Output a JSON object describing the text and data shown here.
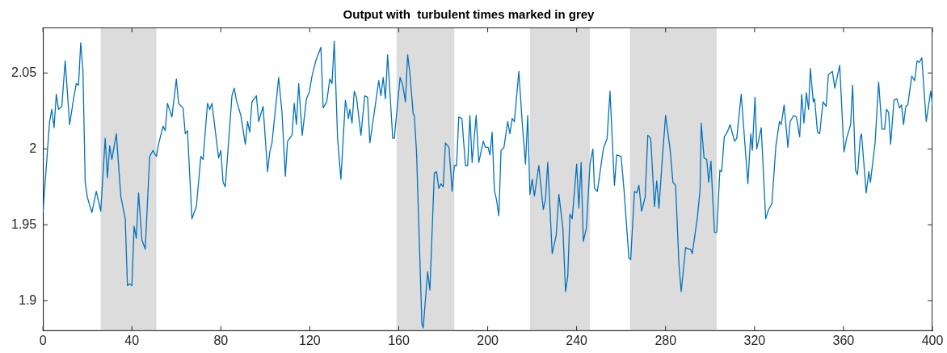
{
  "chart_data": {
    "type": "line",
    "title": "Output with  turbulent times marked in grey",
    "x": [
      0,
      3,
      4,
      5,
      6,
      7,
      8.5,
      10,
      12,
      14,
      15,
      16,
      17,
      18,
      19,
      20,
      22,
      24,
      26,
      28,
      29,
      30,
      31,
      33,
      35,
      37,
      38,
      39,
      40,
      41,
      42,
      43,
      44.5,
      46,
      48,
      49.5,
      51,
      52,
      54,
      55,
      56,
      58,
      60,
      61,
      63,
      64,
      65,
      67,
      69,
      71,
      72,
      74,
      75,
      76,
      79,
      80,
      81,
      82,
      85,
      86,
      87,
      89,
      91,
      92,
      93,
      94,
      96,
      97,
      99,
      101,
      102,
      103,
      106,
      107.5,
      109,
      110,
      112,
      113,
      114,
      115,
      116.6,
      118.5,
      119.7,
      121,
      122.7,
      125,
      126,
      127.6,
      129,
      130,
      131,
      132.5,
      134,
      136,
      137.4,
      138,
      139,
      140,
      141,
      143,
      144.7,
      146,
      147,
      149,
      151,
      152,
      153,
      154,
      155,
      157.3,
      158,
      160.6,
      161.8,
      163,
      164,
      165,
      166.5,
      167,
      168,
      170.4,
      171,
      173,
      174,
      176,
      177,
      178,
      179,
      180,
      181,
      182.6,
      184,
      185,
      186,
      187,
      188.4,
      190,
      191,
      192,
      193,
      194.8,
      196,
      198,
      199,
      200.2,
      201,
      202,
      203,
      204,
      205,
      206,
      207.3,
      209,
      210,
      211,
      212,
      214,
      215.5,
      217,
      218,
      219,
      220,
      221,
      223,
      225,
      226,
      227,
      229,
      230.8,
      232,
      233.8,
      235,
      236,
      237,
      238,
      240,
      241,
      242,
      243,
      244.4,
      246,
      247.3,
      248,
      249.3,
      252,
      253.7,
      255,
      257,
      258,
      260,
      261.3,
      263.5,
      264.3,
      266,
      267,
      268,
      269.2,
      270.8,
      272,
      273.3,
      275,
      276,
      277,
      278.7,
      280,
      282,
      283.3,
      284.5,
      286,
      287,
      289,
      290.3,
      291.2,
      292,
      294.3,
      295.5,
      296,
      297.3,
      298.5,
      299.4,
      300.4,
      301,
      302,
      303,
      304.4,
      305.2,
      306.4,
      307.7,
      309,
      311,
      312,
      314,
      317,
      318.3,
      319,
      320.2,
      321,
      323,
      325,
      326.3,
      327.8,
      329.6,
      331.2,
      332,
      333.3,
      335,
      336,
      337.6,
      338.8,
      340.3,
      341.2,
      342.2,
      343.3,
      344.3,
      345.1,
      346.4,
      347,
      348.3,
      349.3,
      350.8,
      352.2,
      353.2,
      355,
      356.1,
      358.3,
      360.2,
      361.4,
      363.2,
      364.1,
      365.4,
      366.3,
      367.5,
      368.1,
      370.2,
      371.4,
      372.1,
      374.2,
      375.8,
      377.3,
      378.5,
      379.3,
      380.3,
      381.2,
      382.7,
      384,
      385.2,
      386.1,
      387,
      388,
      388.9,
      390.7,
      392,
      393.1,
      394.1,
      395.2,
      397.2,
      399.2,
      400
    ],
    "series": [
      {
        "color": "#0072bd",
        "values": [
          1.958,
          2.018,
          2.026,
          2.014,
          2.036,
          2.026,
          2.028,
          2.058,
          2.016,
          2.035,
          2.043,
          2.042,
          2.07,
          2.051,
          1.978,
          1.968,
          1.958,
          1.972,
          1.959,
          2.007,
          1.981,
          2.002,
          1.993,
          2.01,
          1.969,
          1.954,
          1.91,
          1.911,
          1.91,
          1.949,
          1.941,
          1.971,
          1.94,
          1.934,
          1.995,
          1.999,
          1.995,
          2.003,
          2.015,
          2.012,
          2.03,
          2.021,
          2.046,
          2.03,
          2.027,
          2.01,
          2.012,
          1.954,
          1.962,
          1.995,
          1.993,
          2.03,
          2.026,
          2.03,
          1.994,
          1.999,
          1.978,
          1.975,
          2.035,
          2.04,
          2.032,
          2.022,
          2.003,
          2.018,
          2.011,
          2.031,
          2.035,
          2.018,
          2.028,
          1.985,
          1.998,
          2.004,
          2.047,
          2.024,
          1.982,
          2.005,
          2.009,
          2.03,
          2.016,
          2.043,
          2.009,
          2.033,
          2.037,
          2.048,
          2.058,
          2.067,
          2.027,
          2.031,
          2.046,
          2.043,
          2.071,
          2.007,
          1.98,
          2.032,
          2.02,
          2.026,
          2.017,
          2.038,
          2.034,
          2.009,
          2.035,
          2.034,
          2.004,
          2.024,
          2.045,
          2.035,
          2.047,
          2.033,
          2.062,
          2.007,
          2.007,
          2.047,
          2.042,
          2.031,
          2.062,
          2.05,
          2.023,
          2.022,
          1.998,
          1.885,
          1.882,
          1.919,
          1.907,
          1.984,
          1.985,
          1.974,
          1.977,
          1.975,
          2.004,
          2.001,
          1.972,
          1.989,
          1.989,
          2.021,
          2.02,
          1.989,
          1.989,
          2.022,
          1.991,
          2.022,
          1.991,
          2.005,
          2.001,
          2.001,
          1.996,
          2.011,
          1.973,
          1.966,
          1.956,
          1.999,
          2.001,
          2.018,
          2.01,
          2.02,
          2.018,
          2.051,
          2.018,
          1.99,
          2.022,
          1.97,
          1.98,
          1.969,
          1.989,
          1.96,
          1.967,
          1.991,
          1.931,
          1.943,
          1.97,
          1.948,
          1.906,
          1.916,
          1.957,
          1.954,
          1.99,
          1.961,
          1.991,
          1.939,
          1.948,
          1.99,
          2,
          1.974,
          1.972,
          2,
          2.007,
          2.038,
          1.976,
          1.996,
          1.995,
          1.973,
          1.928,
          1.927,
          1.972,
          1.971,
          1.976,
          1.959,
          1.968,
          2.009,
          2.007,
          1.962,
          1.979,
          1.961,
          1.997,
          2.022,
          2,
          1.978,
          1.976,
          1.924,
          1.906,
          1.935,
          1.934,
          1.934,
          1.931,
          1.955,
          1.973,
          2.017,
          1.994,
          1.993,
          1.978,
          1.992,
          1.973,
          1.945,
          1.945,
          1.986,
          1.985,
          2.008,
          2.011,
          2.016,
          2.005,
          2.007,
          2.036,
          1.977,
          2.01,
          1.999,
          2.034,
          2,
          2.014,
          1.954,
          1.96,
          1.964,
          2.002,
          2.018,
          2.016,
          2.029,
          2.001,
          2.018,
          2.022,
          2.021,
          2.008,
          2.036,
          2.017,
          2.037,
          2.026,
          2.053,
          2.031,
          2.033,
          2.011,
          2.01,
          2.031,
          2.028,
          2.049,
          2.051,
          2.04,
          2.055,
          1.998,
          2.007,
          2.016,
          2.042,
          1.986,
          1.983,
          2.007,
          2.01,
          1.971,
          1.985,
          1.978,
          2.004,
          2.044,
          2.013,
          2.013,
          2.026,
          2.024,
          2.003,
          2.032,
          2.033,
          2.027,
          2.029,
          2.016,
          2.028,
          2.029,
          2.048,
          2.045,
          2.058,
          2.057,
          2.06,
          2.018,
          2.038,
          2.029
        ]
      }
    ],
    "xlim": [
      0,
      400
    ],
    "xticks": [
      0,
      40,
      80,
      120,
      160,
      200,
      240,
      280,
      320,
      360,
      400
    ],
    "ylim": [
      1.88,
      2.08
    ],
    "yticks": [
      1.9,
      1.95,
      2,
      2.05
    ],
    "bands": [
      {
        "axis": "x",
        "from": 26,
        "to": 51,
        "color": "#dcdcdc"
      },
      {
        "axis": "x",
        "from": 159,
        "to": 185,
        "color": "#dcdcdc"
      },
      {
        "axis": "x",
        "from": 219,
        "to": 246,
        "color": "#dcdcdc"
      },
      {
        "axis": "x",
        "from": 264,
        "to": 303,
        "color": "#dcdcdc"
      }
    ],
    "grid": false,
    "legend": false,
    "marker": "none",
    "line_style": "solid"
  }
}
